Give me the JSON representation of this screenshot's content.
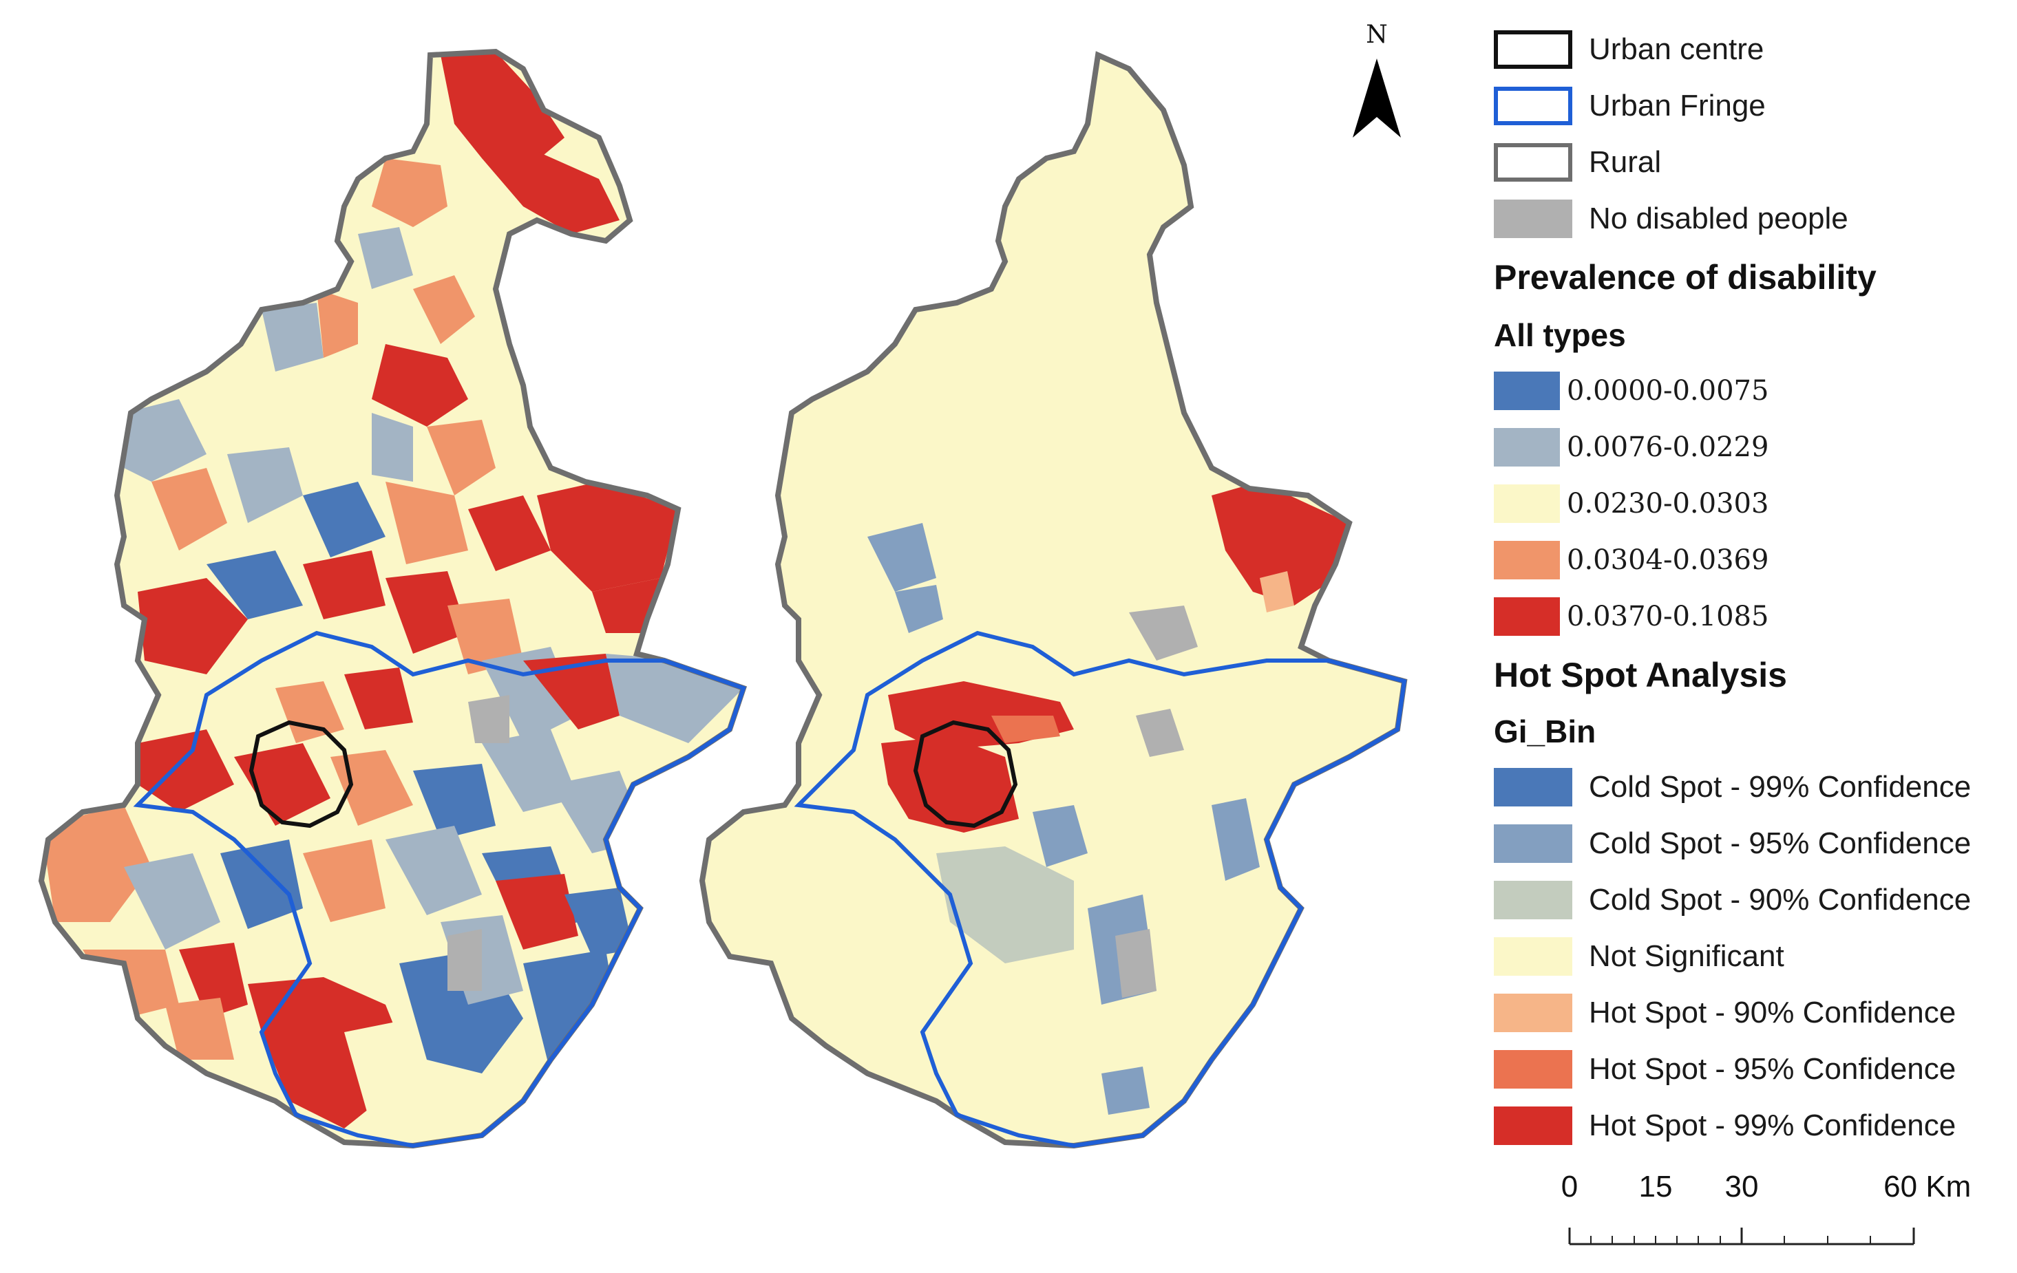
{
  "north_arrow": {
    "label": "N"
  },
  "legend": {
    "boundaries": [
      {
        "label": "Urban centre",
        "border": "#111111",
        "fill": "#ffffff"
      },
      {
        "label": "Urban Fringe",
        "border": "#1f5fd6",
        "fill": "#ffffff"
      },
      {
        "label": "Rural",
        "border": "#6e6e6e",
        "fill": "#ffffff"
      },
      {
        "label": "No disabled people",
        "border": "#b0b0b0",
        "fill": "#b0b0b0"
      }
    ],
    "prevalence_title": "Prevalence of disability",
    "prevalence_subtitle": "All types",
    "prevalence_classes": [
      {
        "label": "0.0000-0.0075",
        "color": "#4a78b8"
      },
      {
        "label": "0.0076-0.0229",
        "color": "#a3b4c4"
      },
      {
        "label": "0.0230-0.0303",
        "color": "#fbf7c8"
      },
      {
        "label": "0.0304-0.0369",
        "color": "#f0956a"
      },
      {
        "label": "0.0370-0.1085",
        "color": "#d62e28"
      }
    ],
    "hotspot_title": "Hot Spot Analysis",
    "hotspot_subtitle": "Gi_Bin",
    "hotspot_classes": [
      {
        "label": "Cold Spot - 99% Confidence",
        "color": "#4a78b8"
      },
      {
        "label": "Cold Spot - 95% Confidence",
        "color": "#839fc0"
      },
      {
        "label": "Cold Spot - 90% Confidence",
        "color": "#c3ccbe"
      },
      {
        "label": "Not Significant",
        "color": "#fbf7c8"
      },
      {
        "label": "Hot Spot - 90% Confidence",
        "color": "#f6b588"
      },
      {
        "label": "Hot Spot - 95% Confidence",
        "color": "#eb7350"
      },
      {
        "label": "Hot Spot - 99% Confidence",
        "color": "#d62e28"
      }
    ]
  },
  "scale_bar": {
    "labels": [
      "0",
      "15",
      "30",
      "60 Km"
    ]
  },
  "colors": {
    "rural_border": "#6e6e6e",
    "fringe_border": "#1f5fd6",
    "centre_border": "#111111",
    "no_data": "#b0b0b0"
  }
}
